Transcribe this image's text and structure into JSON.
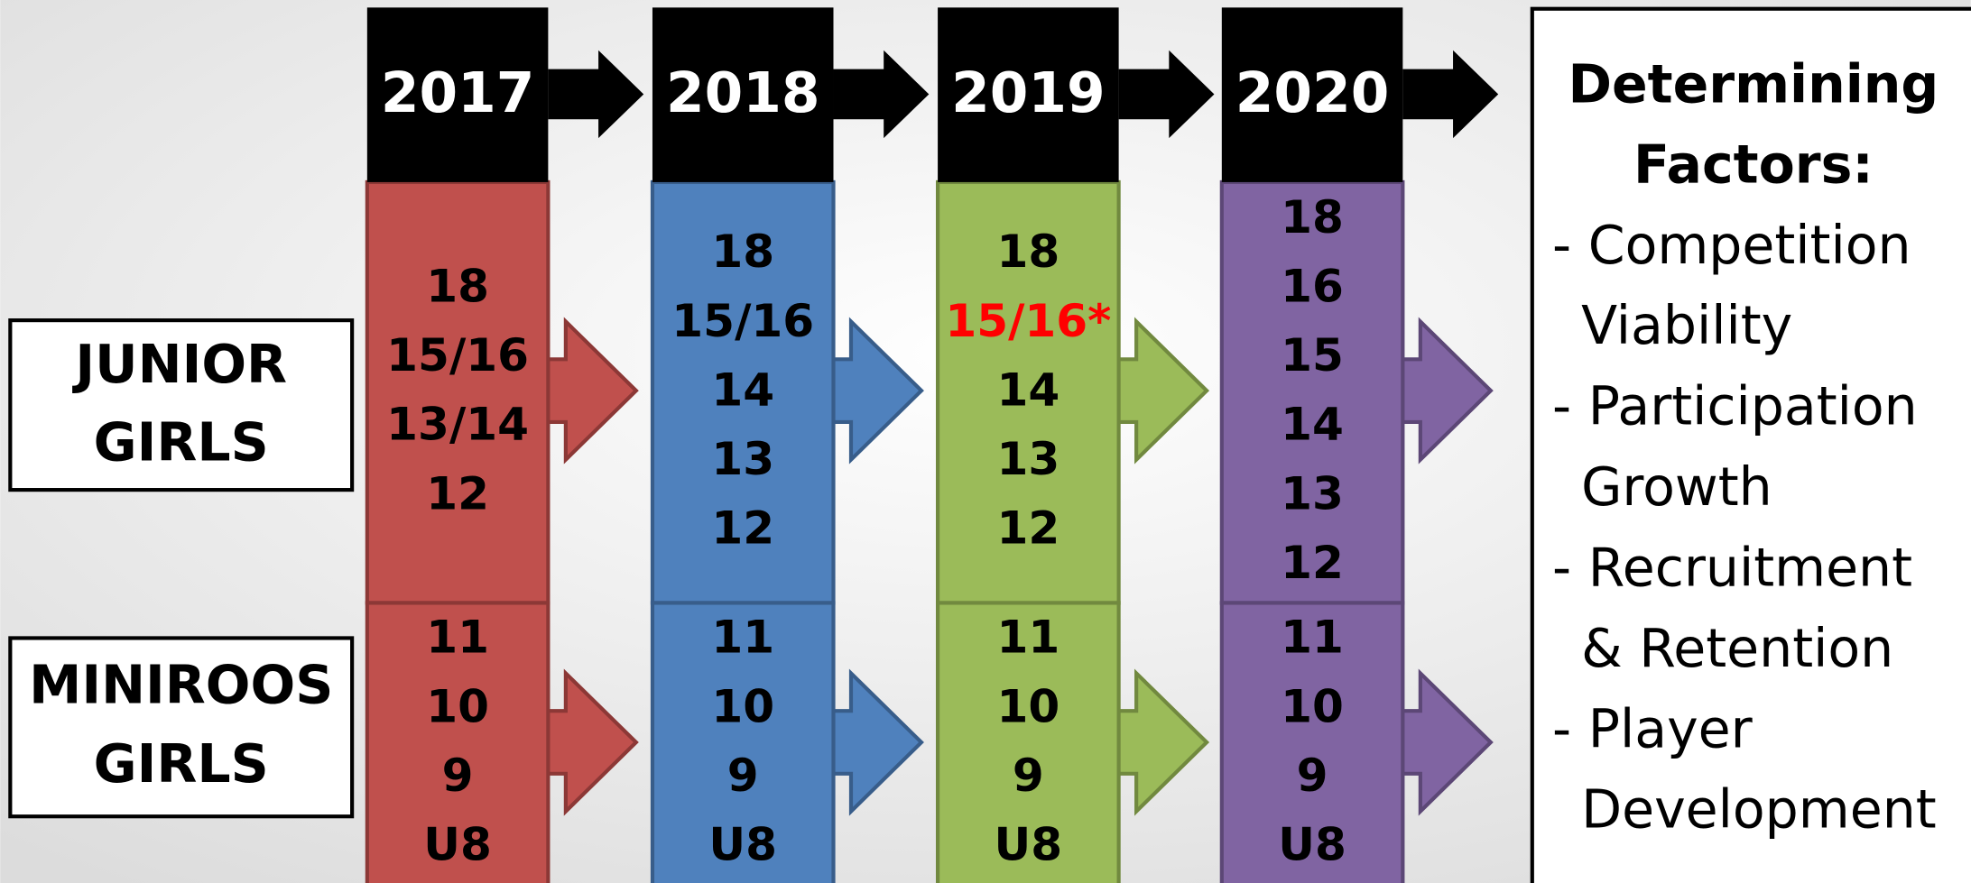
{
  "columns": [
    {
      "year": "2017",
      "color": "#c0504d",
      "border": "#8c3836",
      "junior": [
        "18",
        "15/16",
        "13/14",
        "12"
      ],
      "miniroos": [
        "11",
        "10",
        "9",
        "U8"
      ]
    },
    {
      "year": "2018",
      "color": "#4f81bd",
      "border": "#385d8a",
      "junior": [
        "18",
        "15/16",
        "14",
        "13",
        "12"
      ],
      "miniroos": [
        "11",
        "10",
        "9",
        "U8"
      ]
    },
    {
      "year": "2019",
      "color": "#9bbb59",
      "border": "#71893f",
      "junior": [
        "18",
        {
          "text": "15/16*",
          "color": "#ff0000"
        },
        "14",
        "13",
        "12"
      ],
      "miniroos": [
        "11",
        "10",
        "9",
        "U8"
      ]
    },
    {
      "year": "2020",
      "color": "#8064a2",
      "border": "#5c4776",
      "junior": [
        "18",
        "16",
        "15",
        "14",
        "13",
        "12"
      ],
      "miniroos": [
        "11",
        "10",
        "9",
        "U8"
      ]
    }
  ],
  "row_labels": [
    {
      "lines": [
        "JUNIOR",
        "GIRLS"
      ]
    },
    {
      "lines": [
        "MINIROOS",
        "GIRLS"
      ]
    }
  ],
  "factors": {
    "title": [
      "Determining",
      "Factors:"
    ],
    "items": [
      "- Competition",
      "Viability",
      "- Participation",
      "Growth",
      "- Recruitment",
      "& Retention",
      "- Player",
      "Development"
    ]
  }
}
